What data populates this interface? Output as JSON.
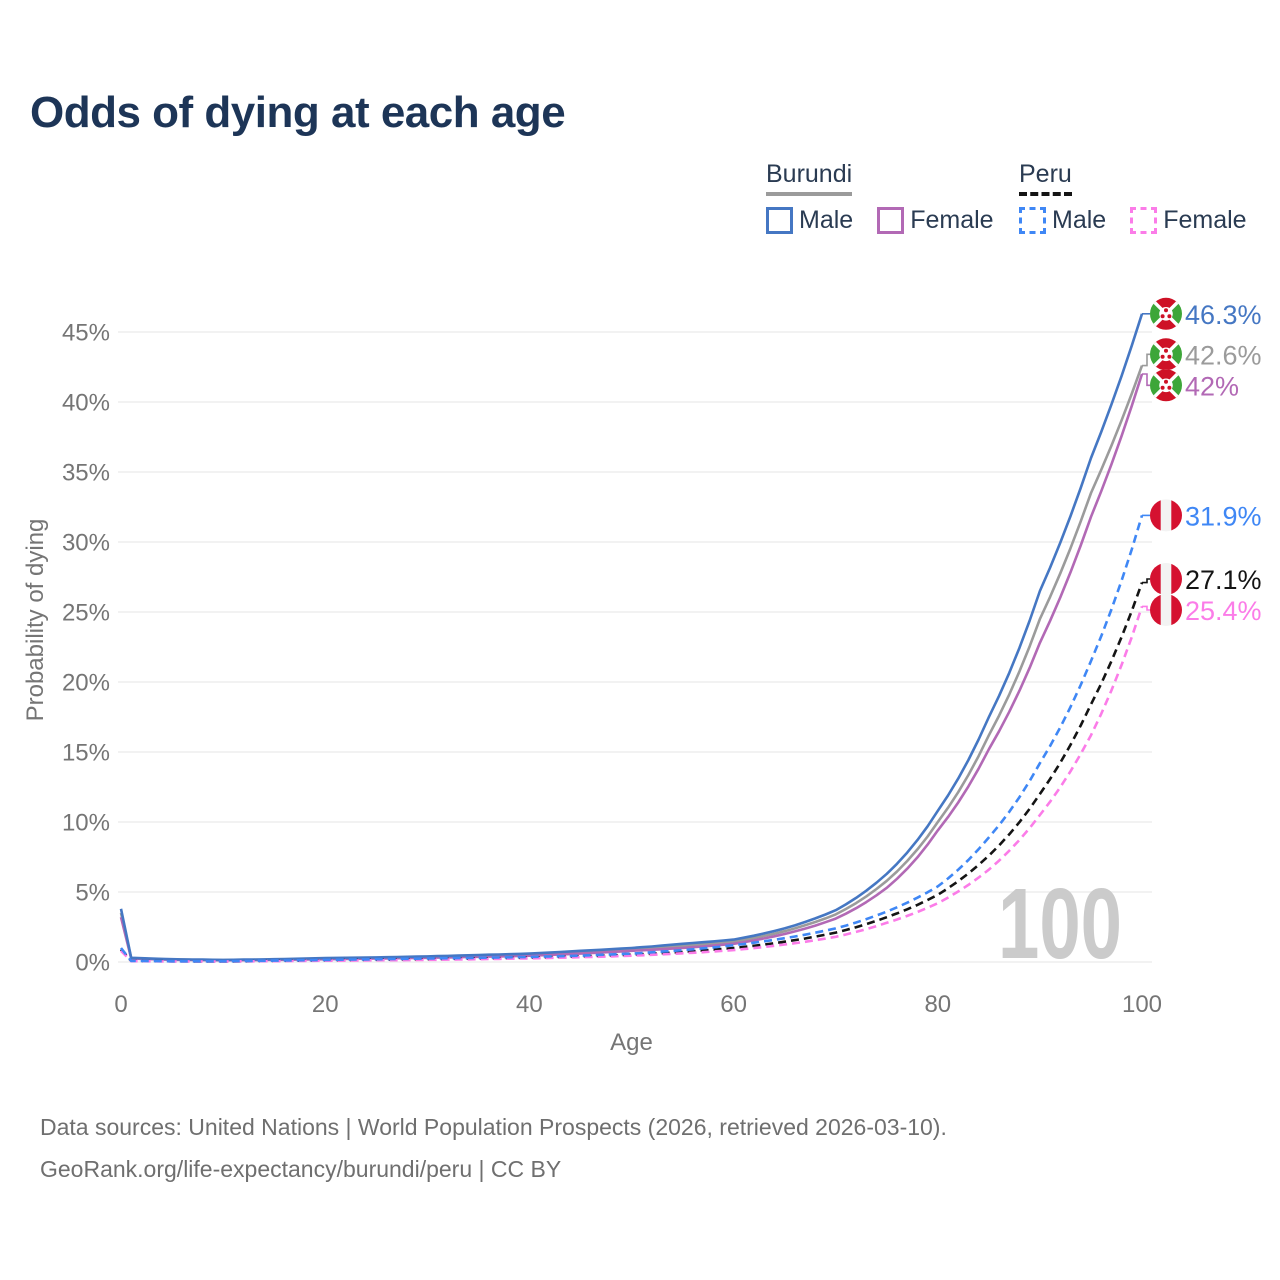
{
  "title": "Odds of dying at each age",
  "legend": {
    "groups": [
      {
        "label": "Burundi",
        "underline_style": "solid",
        "underline_color": "#9b9b9b",
        "items": [
          {
            "label": "Male",
            "color": "#4577c3",
            "dashed": false
          },
          {
            "label": "Female",
            "color": "#b269b5",
            "dashed": false
          }
        ]
      },
      {
        "label": "Peru",
        "underline_style": "dashed",
        "underline_color": "#141414",
        "items": [
          {
            "label": "Male",
            "color": "#3f87f5",
            "dashed": true
          },
          {
            "label": "Female",
            "color": "#fb7ce8",
            "dashed": true
          }
        ]
      }
    ]
  },
  "watermark": "100",
  "footer": {
    "line1": "Data sources: United Nations | World Population Prospects (2026, retrieved 2026-03-10).",
    "line2": "GeoRank.org/life-expectancy/burundi/peru | CC BY"
  },
  "flags": {
    "burundi": {
      "red": "#ce1126",
      "green": "#3da639",
      "white": "#ffffff"
    },
    "peru": {
      "red": "#d51130",
      "white": "#f3f3f3"
    }
  },
  "chart_data": {
    "type": "line",
    "title": "Odds of dying at each age",
    "xlabel": "Age",
    "ylabel": "Probability of dying",
    "xlim": [
      0,
      100
    ],
    "ylim": [
      0,
      47
    ],
    "x_ticks": [
      0,
      20,
      40,
      60,
      80,
      100
    ],
    "y_tick_labels": [
      "0%",
      "5%",
      "10%",
      "15%",
      "20%",
      "25%",
      "30%",
      "35%",
      "40%",
      "45%"
    ],
    "grid": "horizontal",
    "legend_position": "top-right",
    "unit": "percent",
    "ages": [
      0,
      1,
      5,
      10,
      15,
      20,
      25,
      30,
      35,
      40,
      45,
      50,
      55,
      60,
      65,
      70,
      75,
      80,
      85,
      90,
      95,
      100
    ],
    "series": [
      {
        "name": "Burundi All",
        "country": "Burundi",
        "sex": "All",
        "style": "solid",
        "color": "#9b9b9b",
        "end_label": "42.6%",
        "values": [
          3.5,
          0.27,
          0.18,
          0.13,
          0.17,
          0.24,
          0.29,
          0.35,
          0.43,
          0.52,
          0.7,
          0.9,
          1.15,
          1.45,
          2.2,
          3.4,
          5.8,
          10.0,
          16.2,
          24.5,
          33.5,
          42.6
        ]
      },
      {
        "name": "Burundi Female",
        "country": "Burundi",
        "sex": "Female",
        "style": "solid",
        "color": "#b269b5",
        "end_label": "42%",
        "values": [
          3.2,
          0.25,
          0.16,
          0.12,
          0.15,
          0.2,
          0.25,
          0.3,
          0.37,
          0.45,
          0.6,
          0.8,
          1.0,
          1.3,
          2.0,
          3.1,
          5.3,
          9.4,
          15.2,
          22.8,
          31.8,
          42.0
        ]
      },
      {
        "name": "Burundi Male",
        "country": "Burundi",
        "sex": "Male",
        "style": "solid",
        "color": "#4577c3",
        "end_label": "46.3%",
        "values": [
          3.8,
          0.3,
          0.2,
          0.15,
          0.2,
          0.28,
          0.33,
          0.4,
          0.5,
          0.6,
          0.8,
          1.0,
          1.3,
          1.6,
          2.4,
          3.7,
          6.3,
          10.8,
          17.5,
          26.5,
          36.0,
          46.3
        ]
      },
      {
        "name": "Peru All",
        "country": "Peru",
        "sex": "All",
        "style": "dashed",
        "color": "#141414",
        "end_label": "27.1%",
        "values": [
          0.9,
          0.07,
          0.05,
          0.04,
          0.08,
          0.12,
          0.16,
          0.2,
          0.25,
          0.31,
          0.4,
          0.52,
          0.72,
          1.0,
          1.45,
          2.1,
          3.2,
          4.8,
          7.6,
          12.0,
          18.4,
          27.1
        ]
      },
      {
        "name": "Peru Female",
        "country": "Peru",
        "sex": "Female",
        "style": "dashed",
        "color": "#fb7ce8",
        "end_label": "25.4%",
        "values": [
          0.8,
          0.06,
          0.04,
          0.04,
          0.06,
          0.09,
          0.12,
          0.15,
          0.2,
          0.26,
          0.34,
          0.45,
          0.62,
          0.85,
          1.25,
          1.8,
          2.8,
          4.2,
          6.6,
          10.5,
          16.2,
          25.4
        ]
      },
      {
        "name": "Peru Male",
        "country": "Peru",
        "sex": "Male",
        "style": "dashed",
        "color": "#3f87f5",
        "end_label": "31.9%",
        "values": [
          1.0,
          0.08,
          0.05,
          0.05,
          0.1,
          0.15,
          0.2,
          0.25,
          0.3,
          0.36,
          0.46,
          0.6,
          0.85,
          1.2,
          1.7,
          2.4,
          3.6,
          5.4,
          8.9,
          14.2,
          21.5,
          31.9
        ]
      }
    ]
  }
}
